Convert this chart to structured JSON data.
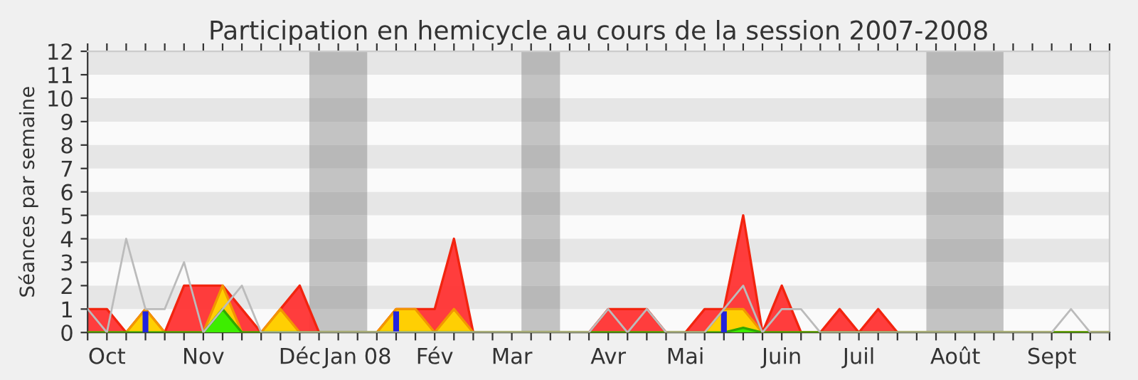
{
  "chart_data": {
    "type": "area",
    "title": "Participation en hemicycle au cours de la session 2007-2008",
    "ylabel": "Séances par semaine",
    "categories": [
      null,
      "Oct",
      null,
      null,
      null,
      null,
      "Nov",
      null,
      null,
      null,
      null,
      "Déc",
      null,
      null,
      "Jan 08",
      null,
      null,
      null,
      "Fév",
      null,
      null,
      null,
      "Mar",
      null,
      null,
      null,
      null,
      "Avr",
      null,
      null,
      null,
      "Mai",
      null,
      null,
      null,
      null,
      "Juin",
      null,
      null,
      null,
      "Juil",
      null,
      null,
      null,
      null,
      "Août",
      null,
      null,
      null,
      null,
      "Sept",
      null,
      null,
      null
    ],
    "ylim": [
      0,
      12
    ],
    "yticks": [
      0,
      1,
      2,
      3,
      4,
      5,
      6,
      7,
      8,
      9,
      10,
      11,
      12
    ],
    "series": [
      {
        "color": "#ff3333",
        "values": [
          1,
          1,
          0,
          1,
          0,
          2,
          2,
          2,
          1,
          0,
          1,
          2,
          0,
          0,
          0,
          0,
          1,
          1,
          1,
          4,
          0,
          0,
          0,
          0,
          0,
          0,
          0,
          1,
          1,
          1,
          0,
          0,
          1,
          1,
          5,
          0,
          2,
          0,
          0,
          1,
          0,
          1,
          0,
          0,
          0,
          0,
          0,
          0,
          0,
          0,
          0,
          0,
          0,
          0
        ]
      },
      {
        "color": "#ffd700",
        "values": [
          0,
          0,
          0,
          1,
          0,
          0,
          0,
          2,
          0,
          0,
          1,
          0,
          0,
          0,
          0,
          0,
          1,
          1,
          0,
          1,
          0,
          0,
          0,
          0,
          0,
          0,
          0,
          0,
          0,
          0,
          0,
          0,
          0,
          1,
          1,
          0,
          0,
          0,
          0,
          0,
          0,
          0,
          0,
          0,
          0,
          0,
          0,
          0,
          0,
          0,
          0,
          0,
          0,
          0
        ]
      },
      {
        "color": "#33ee00",
        "values": [
          0,
          0,
          0,
          0,
          0,
          0,
          0,
          1,
          0,
          0,
          0,
          0,
          0,
          0,
          0,
          0,
          0,
          0,
          0,
          0,
          0,
          0,
          0,
          0,
          0,
          0,
          0,
          0,
          0,
          0,
          0,
          0,
          0,
          0,
          0.2,
          0,
          0,
          0,
          0,
          0,
          0,
          0,
          0,
          0,
          0,
          0,
          0,
          0,
          0,
          0,
          0,
          0,
          0,
          0
        ]
      },
      {
        "type": "bar",
        "color": "#2222dd",
        "values": [
          null,
          null,
          null,
          0.9,
          null,
          null,
          null,
          null,
          null,
          null,
          null,
          null,
          null,
          null,
          null,
          null,
          0.9,
          null,
          null,
          null,
          null,
          null,
          null,
          null,
          null,
          null,
          null,
          null,
          null,
          null,
          null,
          null,
          null,
          0.9,
          null,
          null,
          null,
          null,
          null,
          null,
          null,
          null,
          null,
          null,
          null,
          null,
          null,
          null,
          null,
          null,
          null,
          null,
          null,
          null
        ]
      },
      {
        "type": "line",
        "color": "#bbbbbb",
        "values": [
          1,
          0,
          4,
          1,
          1,
          3,
          0,
          1,
          2,
          0,
          0,
          0,
          0,
          0,
          0,
          0,
          0,
          0,
          0,
          0,
          0,
          0,
          0,
          0,
          0,
          0,
          0,
          1,
          0,
          1,
          0,
          0,
          0,
          1,
          2,
          0,
          1,
          1,
          0,
          0,
          0,
          0,
          0,
          0,
          0,
          0,
          0,
          0,
          0,
          0,
          0,
          1,
          0,
          0
        ]
      }
    ]
  }
}
